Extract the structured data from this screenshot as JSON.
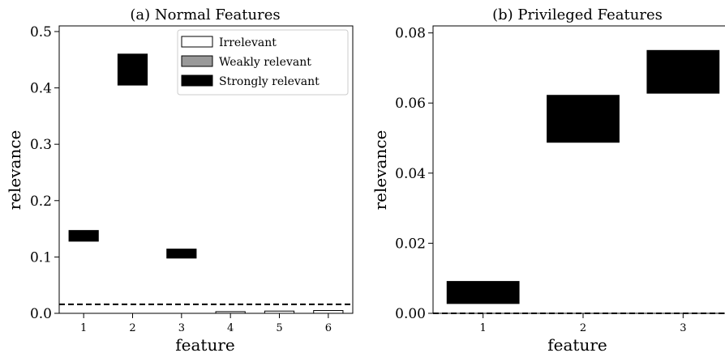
{
  "chart_data": [
    {
      "type": "bar",
      "title": "(a) Normal Features",
      "xlabel": "feature",
      "ylabel": "relevance",
      "categories": [
        "1",
        "2",
        "3",
        "4",
        "5",
        "6"
      ],
      "y_ticks": [
        "0.0",
        "0.1",
        "0.2",
        "0.3",
        "0.4",
        "0.5"
      ],
      "ylim": [
        0,
        0.51
      ],
      "intervals": [
        {
          "feature": "1",
          "lower": 0.128,
          "upper": 0.147,
          "relevance_type": "Strongly relevant"
        },
        {
          "feature": "2",
          "lower": 0.405,
          "upper": 0.46,
          "relevance_type": "Strongly relevant"
        },
        {
          "feature": "3",
          "lower": 0.098,
          "upper": 0.114,
          "relevance_type": "Strongly relevant"
        },
        {
          "feature": "4",
          "lower": 0.0,
          "upper": 0.003,
          "relevance_type": "Irrelevant"
        },
        {
          "feature": "5",
          "lower": 0.0,
          "upper": 0.004,
          "relevance_type": "Irrelevant"
        },
        {
          "feature": "6",
          "lower": 0.0,
          "upper": 0.005,
          "relevance_type": "Irrelevant"
        }
      ],
      "threshold": 0.016,
      "legend": {
        "position": "top-right",
        "entries": [
          {
            "label": "Irrelevant",
            "color": "#ffffff"
          },
          {
            "label": "Weakly relevant",
            "color": "#999999"
          },
          {
            "label": "Strongly relevant",
            "color": "#000000"
          }
        ]
      }
    },
    {
      "type": "bar",
      "title": "(b) Privileged Features",
      "xlabel": "feature",
      "ylabel": "relevance",
      "categories": [
        "1",
        "2",
        "3"
      ],
      "y_ticks": [
        "0.00",
        "0.02",
        "0.04",
        "0.06",
        "0.08"
      ],
      "ylim": [
        0,
        0.082
      ],
      "intervals": [
        {
          "feature": "1",
          "lower": 0.0028,
          "upper": 0.0091,
          "relevance_type": "Strongly relevant"
        },
        {
          "feature": "2",
          "lower": 0.0488,
          "upper": 0.0622,
          "relevance_type": "Strongly relevant"
        },
        {
          "feature": "3",
          "lower": 0.0628,
          "upper": 0.075,
          "relevance_type": "Strongly relevant"
        }
      ],
      "threshold": 0.0
    }
  ]
}
